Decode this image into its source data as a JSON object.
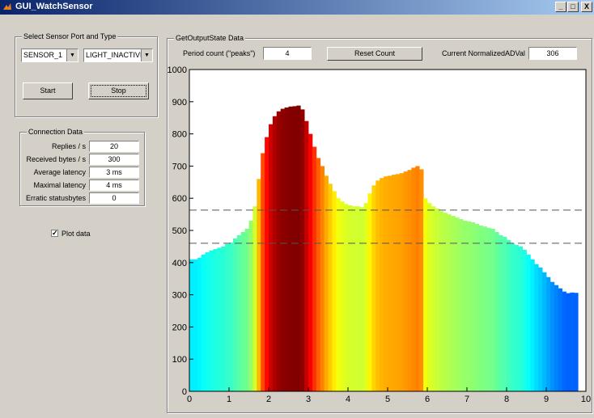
{
  "window": {
    "title": "GUI_WatchSensor",
    "minimize": "_",
    "maximize": "□",
    "close": "X"
  },
  "sensor_panel": {
    "title": "Select Sensor Port and Type",
    "port_value": "SENSOR_1",
    "type_value": "LIGHT_INACTIVE",
    "start_label": "Start",
    "stop_label": "Stop"
  },
  "connection": {
    "title": "Connection Data",
    "rows": [
      {
        "label": "Replies / s",
        "value": "20"
      },
      {
        "label": "Received bytes / s",
        "value": "300"
      },
      {
        "label": "Average latency",
        "value": "3 ms"
      },
      {
        "label": "Maximal latency",
        "value": "4 ms"
      },
      {
        "label": "Erratic statusbytes",
        "value": "0"
      }
    ]
  },
  "plot_data": {
    "label": "Plot data",
    "checked": true
  },
  "output": {
    "title": "GetOutputState Data",
    "period_label": "Period count (\"peaks\")",
    "period_value": "4",
    "reset_label": "Reset Count",
    "current_label": "Current NormalizedADVal",
    "current_value": "306"
  },
  "chart_data": {
    "type": "bar",
    "xlim": [
      0,
      10
    ],
    "ylim": [
      0,
      1000
    ],
    "xticks": [
      "0",
      "1",
      "2",
      "3",
      "4",
      "5",
      "6",
      "7",
      "8",
      "9",
      "10"
    ],
    "yticks": [
      "0",
      "100",
      "200",
      "300",
      "400",
      "500",
      "600",
      "700",
      "800",
      "900",
      "1000"
    ],
    "threshold_lines": [
      563,
      460
    ],
    "colormap": "jet",
    "x": [
      0.0,
      0.1,
      0.2,
      0.3,
      0.4,
      0.5,
      0.6,
      0.7,
      0.8,
      0.9,
      1.0,
      1.1,
      1.2,
      1.3,
      1.4,
      1.5,
      1.6,
      1.7,
      1.8,
      1.9,
      2.0,
      2.1,
      2.2,
      2.3,
      2.4,
      2.5,
      2.6,
      2.7,
      2.8,
      2.9,
      3.0,
      3.1,
      3.2,
      3.3,
      3.4,
      3.5,
      3.6,
      3.7,
      3.8,
      3.9,
      4.0,
      4.1,
      4.2,
      4.3,
      4.4,
      4.5,
      4.6,
      4.7,
      4.8,
      4.9,
      5.0,
      5.1,
      5.2,
      5.3,
      5.4,
      5.5,
      5.6,
      5.7,
      5.8,
      5.9,
      6.0,
      6.1,
      6.2,
      6.3,
      6.4,
      6.5,
      6.6,
      6.7,
      6.8,
      6.9,
      7.0,
      7.1,
      7.2,
      7.3,
      7.4,
      7.5,
      7.6,
      7.7,
      7.8,
      7.9,
      8.0,
      8.1,
      8.2,
      8.3,
      8.4,
      8.5,
      8.6,
      8.7,
      8.8,
      8.9,
      9.0,
      9.1,
      9.2,
      9.3,
      9.4,
      9.5,
      9.6,
      9.7
    ],
    "values": [
      410,
      410,
      415,
      425,
      432,
      438,
      442,
      446,
      450,
      458,
      462,
      475,
      485,
      495,
      505,
      530,
      575,
      660,
      740,
      790,
      830,
      855,
      870,
      878,
      882,
      885,
      886,
      888,
      876,
      840,
      800,
      760,
      725,
      700,
      670,
      645,
      622,
      600,
      590,
      582,
      578,
      575,
      575,
      572,
      585,
      615,
      640,
      655,
      663,
      668,
      670,
      673,
      675,
      678,
      683,
      688,
      695,
      700,
      690,
      600,
      585,
      575,
      568,
      560,
      555,
      550,
      545,
      540,
      535,
      530,
      528,
      525,
      520,
      515,
      512,
      508,
      505,
      495,
      485,
      480,
      470,
      460,
      455,
      450,
      440,
      425,
      410,
      395,
      385,
      370,
      355,
      340,
      330,
      320,
      310,
      305,
      307,
      306
    ]
  }
}
